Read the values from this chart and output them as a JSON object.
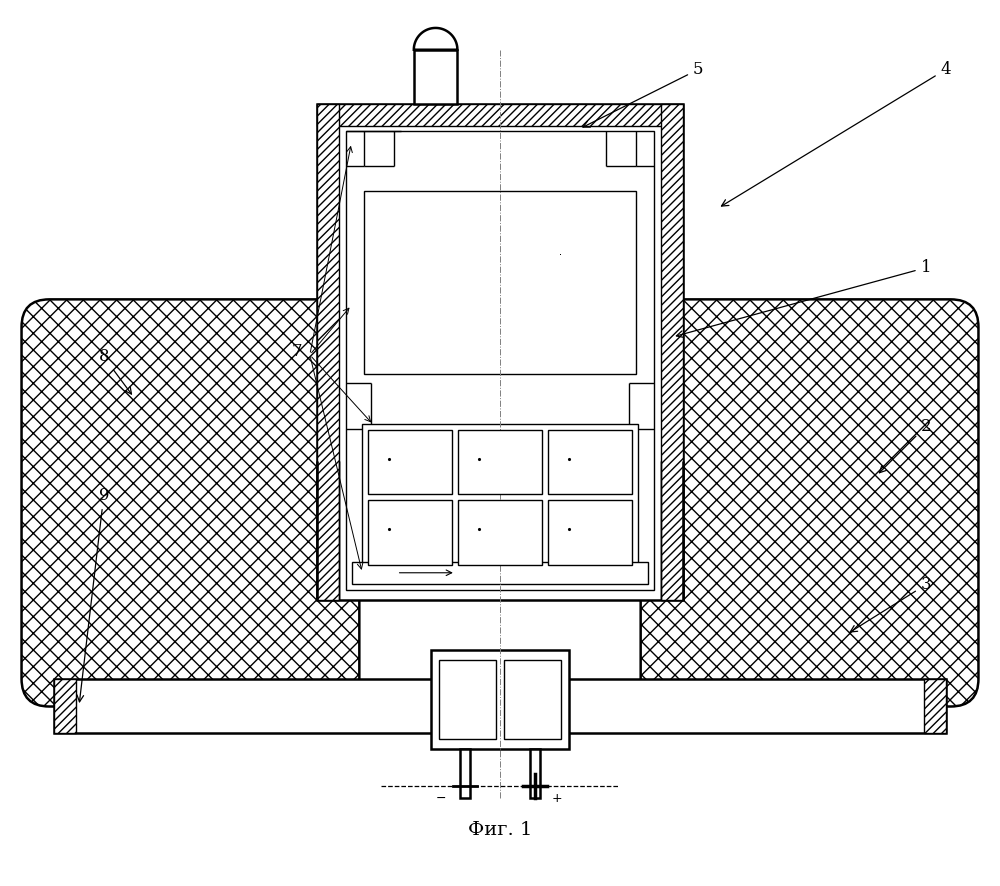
{
  "title": "Фиг. 1",
  "background_color": "#ffffff",
  "line_color": "#000000",
  "fig_width": 10.0,
  "fig_height": 8.86,
  "lw_main": 1.8,
  "lw_thin": 1.0,
  "lw_hatch": 0.7
}
